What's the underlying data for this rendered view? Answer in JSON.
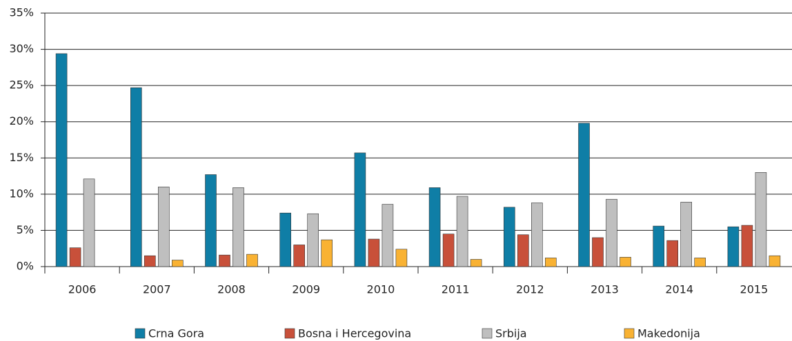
{
  "chart_data": {
    "type": "bar",
    "categories": [
      "2006",
      "2007",
      "2008",
      "2009",
      "2010",
      "2011",
      "2012",
      "2013",
      "2014",
      "2015"
    ],
    "series": [
      {
        "name": "Crna Gora",
        "color": "#0f7ea6",
        "values": [
          29.4,
          24.7,
          12.7,
          7.4,
          15.7,
          10.9,
          8.2,
          19.8,
          5.6,
          5.5
        ]
      },
      {
        "name": "Bosna i Hercegovina",
        "color": "#c8503a",
        "values": [
          2.6,
          1.5,
          1.6,
          3.0,
          3.8,
          4.5,
          4.4,
          4.0,
          3.6,
          5.7
        ]
      },
      {
        "name": "Srbija",
        "color": "#bfbfbf",
        "values": [
          12.1,
          11.0,
          10.9,
          7.3,
          8.6,
          9.7,
          8.8,
          9.3,
          8.9,
          13.0
        ]
      },
      {
        "name": "Makedonija",
        "color": "#f9b233",
        "values": [
          null,
          0.9,
          1.7,
          3.7,
          2.4,
          1.0,
          1.2,
          1.3,
          1.2,
          1.5
        ]
      }
    ],
    "ylim": [
      0,
      35
    ],
    "yticks": [
      {
        "value": 0,
        "label": "0%"
      },
      {
        "value": 5,
        "label": "5%"
      },
      {
        "value": 10,
        "label": "10%"
      },
      {
        "value": 15,
        "label": "15%"
      },
      {
        "value": 20,
        "label": "20%"
      },
      {
        "value": 25,
        "label": "25%"
      },
      {
        "value": 30,
        "label": "30%"
      },
      {
        "value": 35,
        "label": "35%"
      }
    ],
    "grid": true,
    "legend": "bottom"
  }
}
